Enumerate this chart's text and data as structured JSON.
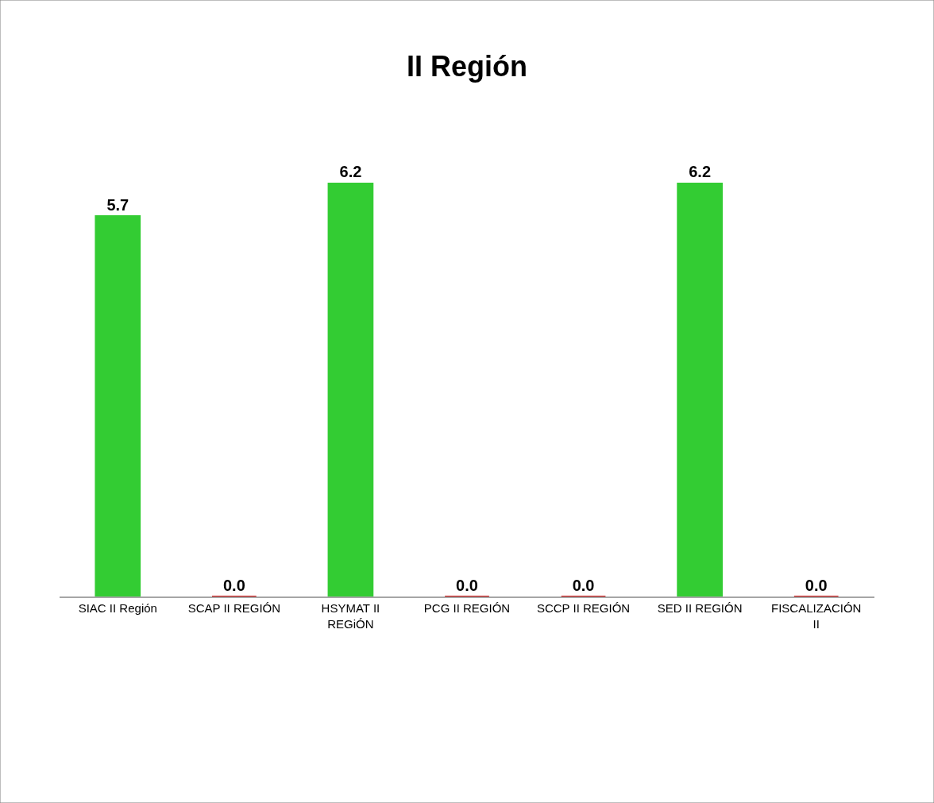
{
  "chart_data": {
    "type": "bar",
    "title": "II Región",
    "categories": [
      "SIAC II Región",
      "SCAP II REGIÓN",
      "HSYMAT II REGiÓN",
      "PCG II REGIÓN",
      "SCCP II REGIÓN",
      "SED II REGIÓN",
      "FISCALIZACIÓN II"
    ],
    "values": [
      5.7,
      0,
      6.2,
      0,
      0,
      6.2,
      0
    ],
    "colors": [
      "#33cc33",
      "#cc0000",
      "#33cc33",
      "#cc0000",
      "#cc0000",
      "#33cc33",
      "#cc0000"
    ],
    "value_labels": [
      "5.7",
      "0.0",
      "6.2",
      "0.0",
      "0.0",
      "6.2",
      "0.0"
    ],
    "legend": false
  }
}
